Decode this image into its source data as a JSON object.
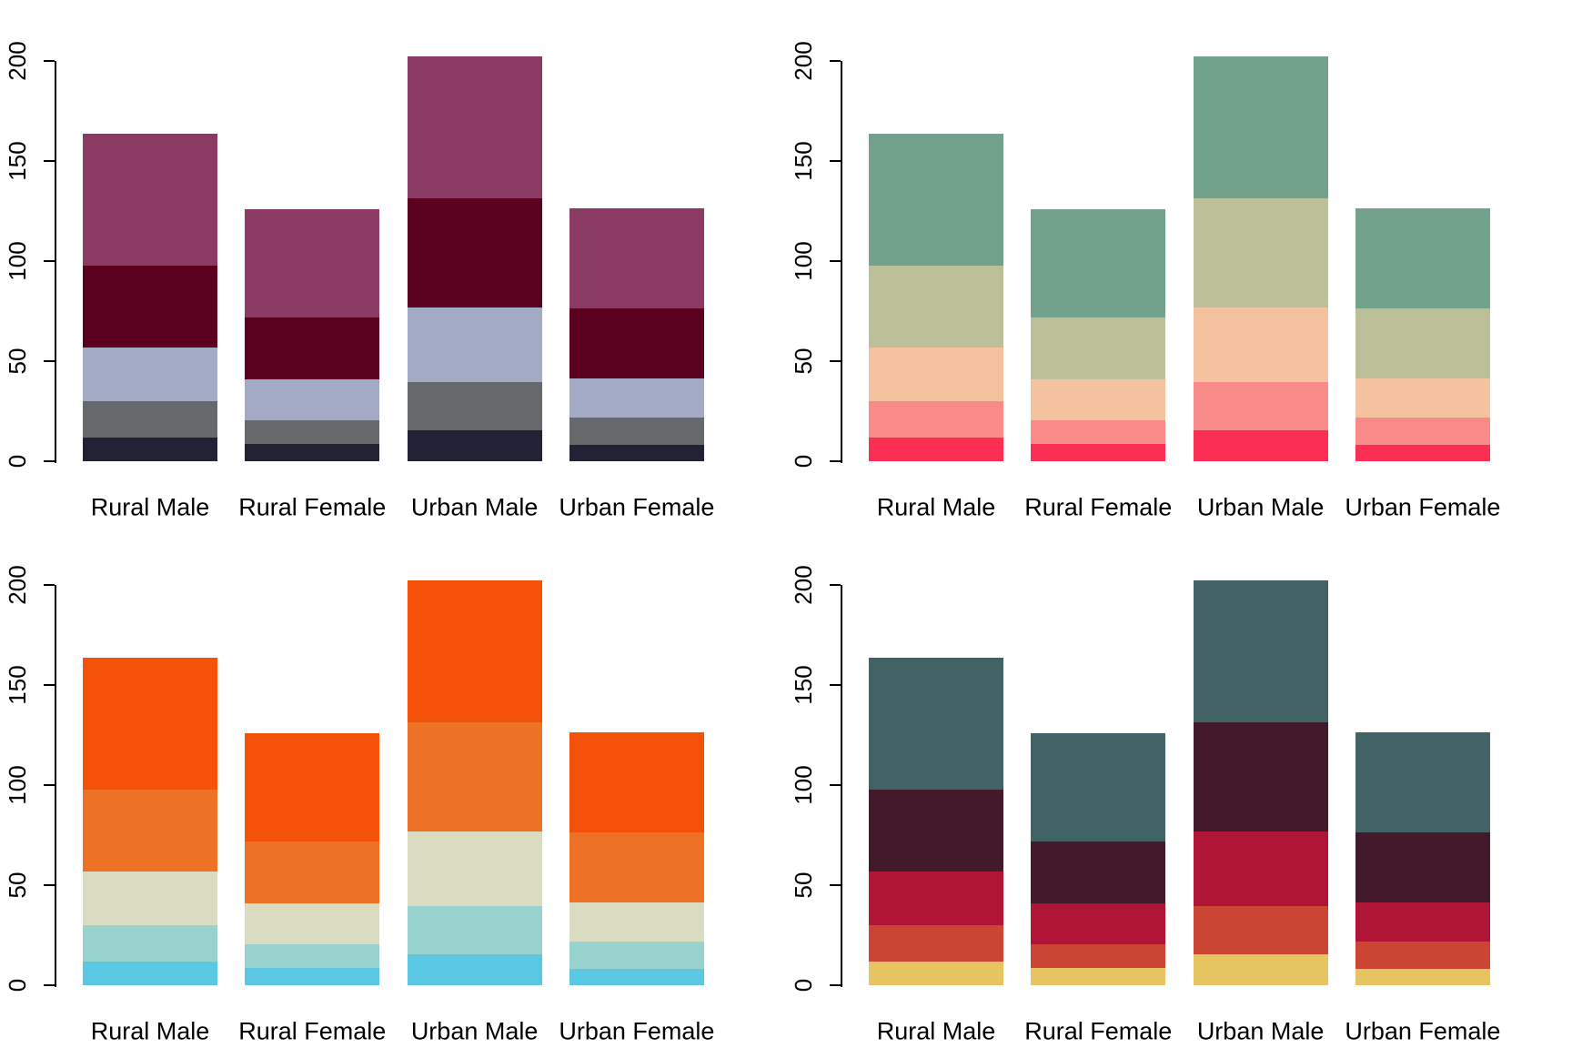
{
  "figure": {
    "background": "#ffffff",
    "text_color": "#000000",
    "layout": "2x2 grid of stacked barplots",
    "categories": [
      "Rural Male",
      "Rural Female",
      "Urban Male",
      "Urban Female"
    ],
    "y_tick_labels": [
      "0",
      "50",
      "100",
      "150",
      "200"
    ]
  },
  "chart_data": [
    {
      "type": "bar",
      "stacked": true,
      "panel": "top-left",
      "title": "",
      "xlabel": "",
      "ylabel": "",
      "categories": [
        "Rural Male",
        "Rural Female",
        "Urban Male",
        "Urban Female"
      ],
      "stack_order": "bottom-to-top",
      "series": [
        {
          "values": [
            11.7,
            8.7,
            15.4,
            8.4
          ],
          "color": "#212233"
        },
        {
          "values": [
            18.1,
            11.7,
            24.3,
            13.6
          ],
          "color": "#66696C"
        },
        {
          "values": [
            26.9,
            20.3,
            37.0,
            19.3
          ],
          "color": "#A3ABC4"
        },
        {
          "values": [
            41.0,
            30.9,
            54.6,
            35.1
          ],
          "color": "#5C0020"
        },
        {
          "values": [
            66.0,
            54.3,
            71.1,
            50.0
          ],
          "color": "#8A3A63"
        }
      ],
      "totals": [
        163.7,
        125.9,
        202.4,
        126.4
      ],
      "ylim": [
        0,
        200
      ],
      "yticks": [
        0,
        50,
        100,
        150,
        200
      ],
      "y_tick_labels": [
        "0",
        "50",
        "100",
        "150",
        "200"
      ],
      "y_tick_label_rotation_deg": 90,
      "grid": false,
      "legend": "none"
    },
    {
      "type": "bar",
      "stacked": true,
      "panel": "top-right",
      "title": "",
      "xlabel": "",
      "ylabel": "",
      "categories": [
        "Rural Male",
        "Rural Female",
        "Urban Male",
        "Urban Female"
      ],
      "stack_order": "bottom-to-top",
      "series": [
        {
          "values": [
            11.7,
            8.7,
            15.4,
            8.4
          ],
          "color": "#FB2E56"
        },
        {
          "values": [
            18.1,
            11.7,
            24.3,
            13.6
          ],
          "color": "#F88A88"
        },
        {
          "values": [
            26.9,
            20.3,
            37.0,
            19.3
          ],
          "color": "#F5C2A0"
        },
        {
          "values": [
            41.0,
            30.9,
            54.6,
            35.1
          ],
          "color": "#BCC098"
        },
        {
          "values": [
            66.0,
            54.3,
            71.1,
            50.0
          ],
          "color": "#72A18C"
        }
      ],
      "totals": [
        163.7,
        125.9,
        202.4,
        126.4
      ],
      "ylim": [
        0,
        200
      ],
      "yticks": [
        0,
        50,
        100,
        150,
        200
      ],
      "y_tick_labels": [
        "0",
        "50",
        "100",
        "150",
        "200"
      ],
      "y_tick_label_rotation_deg": 90,
      "grid": false,
      "legend": "none"
    },
    {
      "type": "bar",
      "stacked": true,
      "panel": "bottom-left",
      "title": "",
      "xlabel": "",
      "ylabel": "",
      "categories": [
        "Rural Male",
        "Rural Female",
        "Urban Male",
        "Urban Female"
      ],
      "stack_order": "bottom-to-top",
      "series": [
        {
          "values": [
            11.7,
            8.7,
            15.4,
            8.4
          ],
          "color": "#5AC7E3"
        },
        {
          "values": [
            18.1,
            11.7,
            24.3,
            13.6
          ],
          "color": "#98D2CE"
        },
        {
          "values": [
            26.9,
            20.3,
            37.0,
            19.3
          ],
          "color": "#D9DCC1"
        },
        {
          "values": [
            41.0,
            30.9,
            54.6,
            35.1
          ],
          "color": "#ED7226"
        },
        {
          "values": [
            66.0,
            54.3,
            71.1,
            50.0
          ],
          "color": "#F45208"
        }
      ],
      "totals": [
        163.7,
        125.9,
        202.4,
        126.4
      ],
      "ylim": [
        0,
        200
      ],
      "yticks": [
        0,
        50,
        100,
        150,
        200
      ],
      "y_tick_labels": [
        "0",
        "50",
        "100",
        "150",
        "200"
      ],
      "y_tick_label_rotation_deg": 90,
      "grid": false,
      "legend": "none"
    },
    {
      "type": "bar",
      "stacked": true,
      "panel": "bottom-right",
      "title": "",
      "xlabel": "",
      "ylabel": "",
      "categories": [
        "Rural Male",
        "Rural Female",
        "Urban Male",
        "Urban Female"
      ],
      "stack_order": "bottom-to-top",
      "series": [
        {
          "values": [
            11.7,
            8.7,
            15.4,
            8.4
          ],
          "color": "#E6C462"
        },
        {
          "values": [
            18.1,
            11.7,
            24.3,
            13.6
          ],
          "color": "#CC4534"
        },
        {
          "values": [
            26.9,
            20.3,
            37.0,
            19.3
          ],
          "color": "#B01537"
        },
        {
          "values": [
            41.0,
            30.9,
            54.6,
            35.1
          ],
          "color": "#421A2C"
        },
        {
          "values": [
            66.0,
            54.3,
            71.1,
            50.0
          ],
          "color": "#426366"
        }
      ],
      "totals": [
        163.7,
        125.9,
        202.4,
        126.4
      ],
      "ylim": [
        0,
        200
      ],
      "yticks": [
        0,
        50,
        100,
        150,
        200
      ],
      "y_tick_labels": [
        "0",
        "50",
        "100",
        "150",
        "200"
      ],
      "y_tick_label_rotation_deg": 90,
      "grid": false,
      "legend": "none"
    }
  ]
}
